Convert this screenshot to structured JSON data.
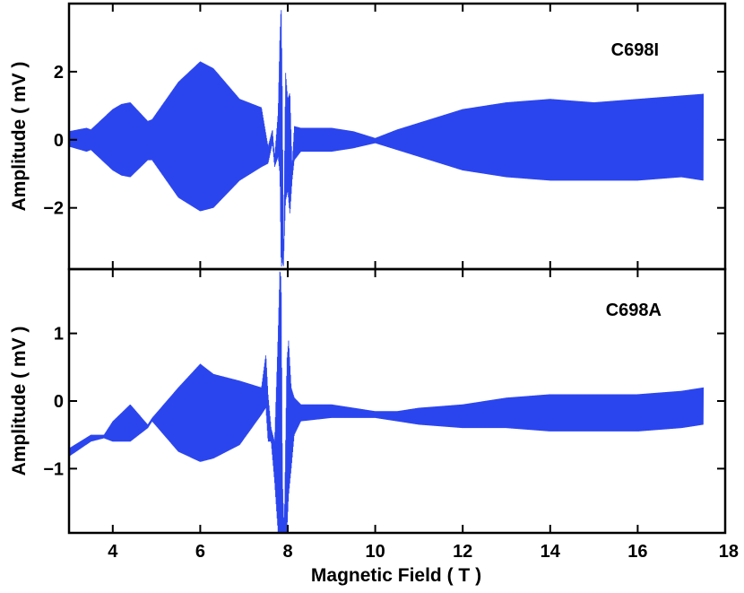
{
  "chart_data": [
    {
      "type": "line",
      "annotation": "C698I",
      "ylabel": "Amplitude ( mV )",
      "xlim": [
        3,
        18
      ],
      "ylim": [
        -3.8,
        4.0
      ],
      "yticks": [
        -2,
        0,
        2
      ],
      "ytick_labels": [
        "−2",
        "0",
        "2"
      ],
      "grid": false,
      "color": "#2b45ee",
      "series": [
        {
          "x": [
            3.0,
            3.4,
            3.5,
            4.0,
            4.2,
            4.4,
            4.8,
            4.9,
            5.5,
            6.0,
            6.3,
            6.9,
            7.4,
            7.55,
            7.65,
            7.7,
            7.78,
            7.82,
            7.85,
            7.88,
            7.9,
            7.95,
            8.0,
            8.05,
            8.1,
            8.15,
            8.3,
            9.0,
            9.5,
            10.0,
            10.5,
            11.0,
            12.0,
            13.0,
            14.0,
            15.0,
            16.0,
            17.0,
            17.5
          ],
          "envelope_upper": [
            0.25,
            0.35,
            0.3,
            0.9,
            1.05,
            1.1,
            0.55,
            0.6,
            1.7,
            2.3,
            2.1,
            1.2,
            0.95,
            -0.2,
            0.3,
            -0.5,
            0.8,
            3.0,
            4.0,
            1.0,
            -3.8,
            2.0,
            1.2,
            1.4,
            -0.8,
            0.4,
            0.35,
            0.35,
            0.25,
            0.05,
            0.3,
            0.5,
            0.9,
            1.1,
            1.2,
            1.1,
            1.2,
            1.3,
            1.35
          ],
          "envelope_lower": [
            -0.2,
            -0.35,
            -0.3,
            -0.9,
            -1.05,
            -1.1,
            -0.6,
            -0.6,
            -1.7,
            -2.1,
            -2.0,
            -1.2,
            -0.8,
            -0.7,
            -0.1,
            -0.8,
            -0.5,
            -1.0,
            -3.8,
            -3.5,
            -3.8,
            -1.8,
            -1.5,
            -2.2,
            -1.2,
            -0.6,
            -0.35,
            -0.35,
            -0.25,
            -0.1,
            -0.3,
            -0.5,
            -0.9,
            -1.1,
            -1.2,
            -1.2,
            -1.2,
            -1.1,
            -1.2
          ]
        }
      ]
    },
    {
      "type": "line",
      "annotation": "C698A",
      "ylabel": "Amplitude ( mV )",
      "xlabel": "Magnetic Field ( T )",
      "xlim": [
        3,
        18
      ],
      "ylim": [
        -1.95,
        1.95
      ],
      "xticks": [
        4,
        6,
        8,
        10,
        12,
        14,
        16,
        18
      ],
      "xtick_labels": [
        "4",
        "6",
        "8",
        "10",
        "12",
        "14",
        "16",
        "18"
      ],
      "yticks": [
        -1,
        0,
        1
      ],
      "ytick_labels": [
        "−1",
        "0",
        "1"
      ],
      "grid": false,
      "color": "#2b45ee",
      "series": [
        {
          "x": [
            3.0,
            3.5,
            3.8,
            4.0,
            4.4,
            4.8,
            4.9,
            5.5,
            6.0,
            6.3,
            6.9,
            7.4,
            7.5,
            7.55,
            7.62,
            7.7,
            7.78,
            7.82,
            7.85,
            7.88,
            7.92,
            7.98,
            8.02,
            8.08,
            8.15,
            8.3,
            9.0,
            9.5,
            10.0,
            10.5,
            11.0,
            12.0,
            13.0,
            14.0,
            15.0,
            16.0,
            17.0,
            17.5
          ],
          "envelope_upper": [
            -0.7,
            -0.5,
            -0.5,
            -0.3,
            -0.05,
            -0.35,
            -0.25,
            0.2,
            0.55,
            0.4,
            0.3,
            0.2,
            0.7,
            0.1,
            -0.4,
            -0.6,
            1.0,
            1.95,
            1.8,
            -1.2,
            -1.95,
            0.6,
            0.9,
            0.2,
            0.05,
            -0.05,
            -0.05,
            -0.1,
            -0.15,
            -0.15,
            -0.1,
            -0.05,
            0.05,
            0.1,
            0.1,
            0.1,
            0.15,
            0.2
          ],
          "envelope_lower": [
            -0.82,
            -0.6,
            -0.55,
            -0.6,
            -0.6,
            -0.4,
            -0.3,
            -0.75,
            -0.9,
            -0.85,
            -0.65,
            -0.2,
            -0.1,
            -0.6,
            -0.6,
            -1.2,
            -1.95,
            -1.95,
            -1.95,
            -1.95,
            -1.95,
            -1.95,
            -1.4,
            -1.0,
            -0.5,
            -0.3,
            -0.25,
            -0.25,
            -0.25,
            -0.3,
            -0.35,
            -0.4,
            -0.4,
            -0.45,
            -0.45,
            -0.45,
            -0.4,
            -0.35
          ]
        }
      ]
    }
  ]
}
